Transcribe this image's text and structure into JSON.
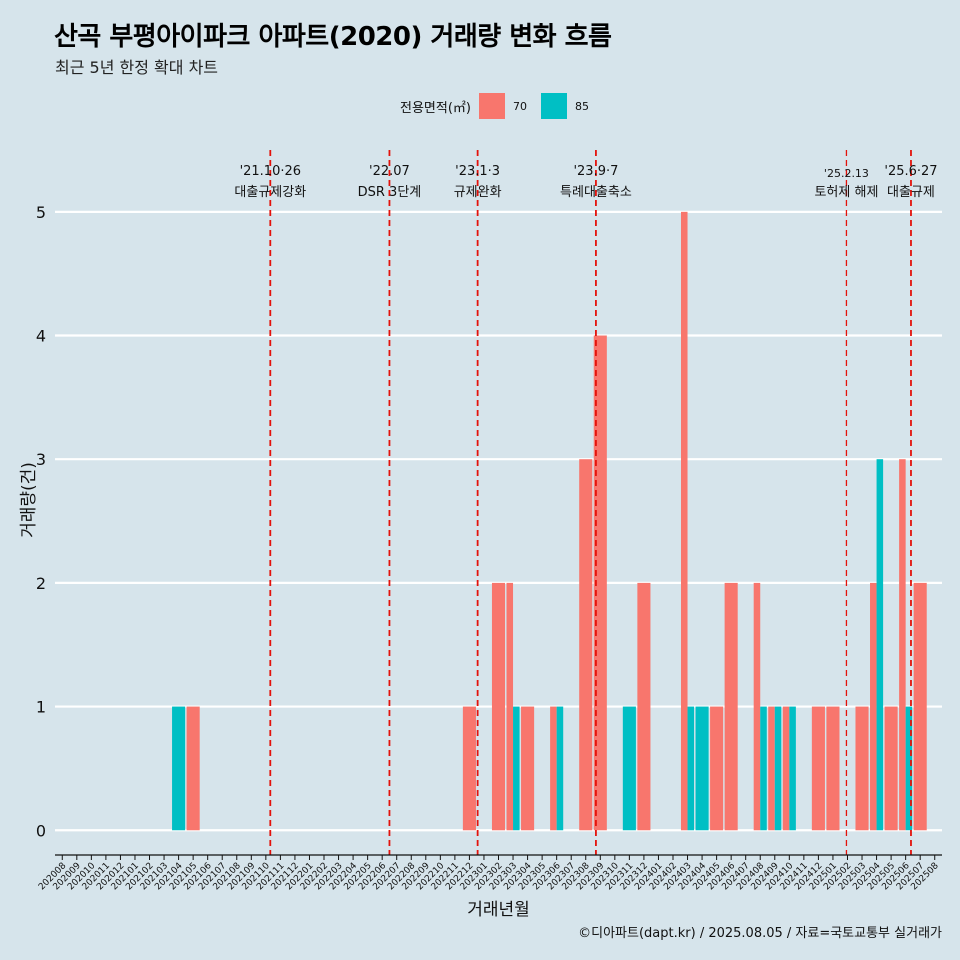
{
  "title": "산곡 부평아이파크 아파트(2020) 거래량 변화 흐름",
  "subtitle": "최근 5년 한정 확대 차트",
  "caption": "©디아파트(dapt.kr) / 2025.08.05 / 자료=국토교통부 실거래가",
  "legend": {
    "title": "전용면적(㎡)",
    "items": [
      {
        "label": "70",
        "color": "#f8766d"
      },
      {
        "label": "85",
        "color": "#00bfc4"
      }
    ]
  },
  "chart_data": {
    "type": "bar",
    "xlabel": "거래년월",
    "ylabel": "거래량(건)",
    "ylim": [
      -0.2,
      5.5
    ],
    "yticks": [
      0,
      1,
      2,
      3,
      4,
      5
    ],
    "grid": true,
    "categories": [
      "202008",
      "202009",
      "202010",
      "202011",
      "202012",
      "202101",
      "202102",
      "202103",
      "202104",
      "202105",
      "202106",
      "202107",
      "202108",
      "202109",
      "202110",
      "202111",
      "202112",
      "202201",
      "202202",
      "202203",
      "202204",
      "202205",
      "202206",
      "202207",
      "202208",
      "202209",
      "202210",
      "202211",
      "202212",
      "202301",
      "202302",
      "202303",
      "202304",
      "202305",
      "202306",
      "202307",
      "202308",
      "202309",
      "202310",
      "202311",
      "202312",
      "202401",
      "202402",
      "202403",
      "202404",
      "202405",
      "202406",
      "202407",
      "202408",
      "202409",
      "202410",
      "202411",
      "202412",
      "202501",
      "202502",
      "202503",
      "202504",
      "202505",
      "202506",
      "202507",
      "202508"
    ],
    "series": [
      {
        "name": "70",
        "color": "#f8766d",
        "values": [
          0,
          0,
          0,
          0,
          0,
          0,
          0,
          0,
          0,
          1,
          0,
          0,
          0,
          0,
          0,
          0,
          0,
          0,
          0,
          0,
          0,
          0,
          0,
          0,
          0,
          0,
          0,
          0,
          1,
          0,
          2,
          2,
          1,
          0,
          1,
          0,
          3,
          4,
          0,
          0,
          2,
          0,
          0,
          5,
          0,
          1,
          2,
          0,
          2,
          1,
          1,
          0,
          1,
          1,
          0,
          1,
          2,
          1,
          3,
          2,
          0
        ]
      },
      {
        "name": "85",
        "color": "#00bfc4",
        "values": [
          0,
          0,
          0,
          0,
          0,
          0,
          0,
          0,
          1,
          0,
          0,
          0,
          0,
          0,
          0,
          0,
          0,
          0,
          0,
          0,
          0,
          0,
          0,
          0,
          0,
          0,
          0,
          0,
          0,
          0,
          0,
          1,
          0,
          0,
          1,
          0,
          0,
          0,
          0,
          1,
          0,
          0,
          0,
          1,
          1,
          0,
          0,
          0,
          1,
          1,
          1,
          0,
          0,
          0,
          0,
          0,
          3,
          0,
          1,
          0,
          0
        ]
      }
    ],
    "events": [
      {
        "date": "2021-10-26",
        "label_top": "'21.10·26",
        "label_bottom": "대출규제강화"
      },
      {
        "date": "2022-07-01",
        "label_top": "'22.07",
        "label_bottom": "DSR 3단계"
      },
      {
        "date": "2023-01-03",
        "label_top": "'23.1·3",
        "label_bottom": "규제완화"
      },
      {
        "date": "2023-09-07",
        "label_top": "'23.9·7",
        "label_bottom": "특례대출축소"
      },
      {
        "date": "2025-02-13",
        "label_top": "'25.2.13",
        "label_bottom": "토허제 해제"
      },
      {
        "date": "2025-06-27",
        "label_top": "'25.6·27",
        "label_bottom": "대출규제"
      }
    ]
  }
}
